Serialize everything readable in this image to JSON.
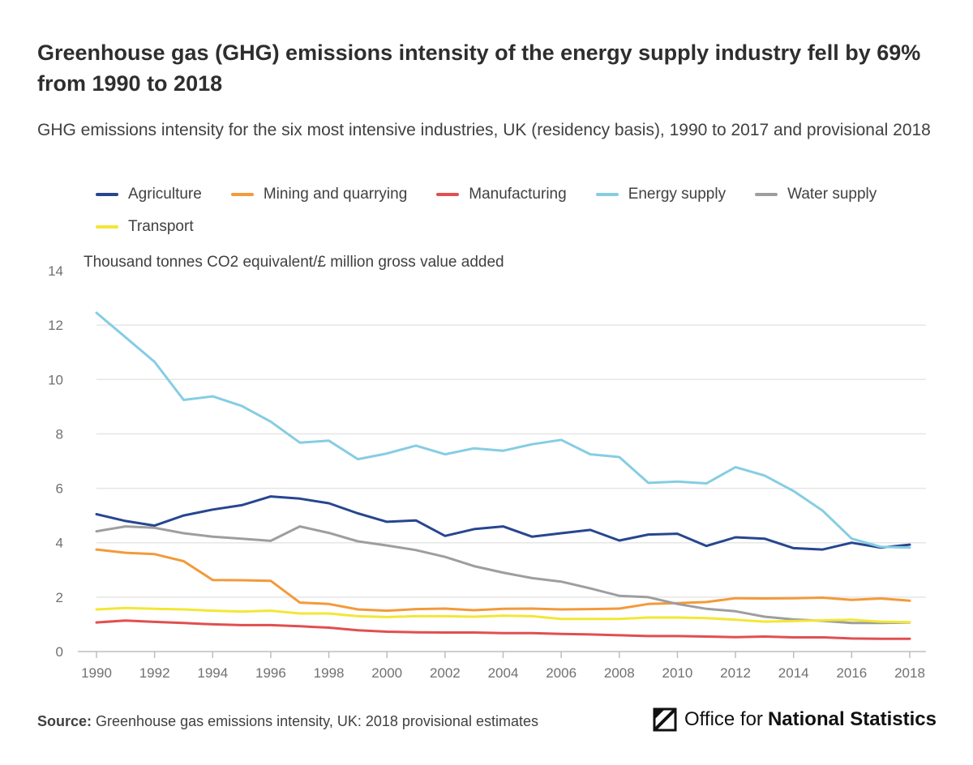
{
  "header": {
    "title": "Greenhouse gas (GHG) emissions intensity of the energy supply industry fell by 69% from 1990 to 2018",
    "subtitle": "GHG emissions intensity for the six most intensive industries, UK (residency basis), 1990 to 2017 and provisional 2018"
  },
  "footer": {
    "source_label": "Source:",
    "source_text": " Greenhouse gas emissions intensity, UK: 2018 provisional estimates",
    "logo_text_regular": "Office for",
    "logo_text_bold": "National Statistics"
  },
  "chart_data": {
    "type": "line",
    "ylabel": "Thousand tonnes CO2 equivalent/£ million gross value added",
    "ylim": [
      0,
      14
    ],
    "yticks": [
      0,
      2,
      4,
      6,
      8,
      10,
      12,
      14
    ],
    "xlim": [
      1990,
      2018
    ],
    "xticks": [
      1990,
      1992,
      1994,
      1996,
      1998,
      2000,
      2002,
      2004,
      2006,
      2008,
      2010,
      2012,
      2014,
      2016,
      2018
    ],
    "grid": true,
    "legend_position": "top",
    "x": [
      1990,
      1991,
      1992,
      1993,
      1994,
      1995,
      1996,
      1997,
      1998,
      1999,
      2000,
      2001,
      2002,
      2003,
      2004,
      2005,
      2006,
      2007,
      2008,
      2009,
      2010,
      2011,
      2012,
      2013,
      2014,
      2015,
      2016,
      2017,
      2018
    ],
    "series": [
      {
        "name": "Agriculture",
        "color": "#27468f",
        "values": [
          5.05,
          4.8,
          4.63,
          5.0,
          5.22,
          5.38,
          5.7,
          5.62,
          5.45,
          5.08,
          4.77,
          4.82,
          4.25,
          4.5,
          4.6,
          4.22,
          4.35,
          4.47,
          4.08,
          4.3,
          4.33,
          3.88,
          4.2,
          4.15,
          3.8,
          3.75,
          4.0,
          3.82,
          3.93
        ]
      },
      {
        "name": "Mining and quarrying",
        "color": "#f39a3a",
        "values": [
          3.75,
          3.63,
          3.58,
          3.32,
          2.63,
          2.62,
          2.6,
          1.8,
          1.75,
          1.55,
          1.5,
          1.56,
          1.58,
          1.52,
          1.57,
          1.58,
          1.55,
          1.56,
          1.58,
          1.75,
          1.78,
          1.82,
          1.96,
          1.95,
          1.96,
          1.98,
          1.9,
          1.95,
          1.87
        ]
      },
      {
        "name": "Manufacturing",
        "color": "#e14f50",
        "values": [
          1.07,
          1.14,
          1.09,
          1.05,
          1.0,
          0.97,
          0.97,
          0.93,
          0.88,
          0.78,
          0.73,
          0.71,
          0.7,
          0.7,
          0.68,
          0.68,
          0.65,
          0.63,
          0.6,
          0.57,
          0.57,
          0.55,
          0.53,
          0.55,
          0.52,
          0.52,
          0.48,
          0.47,
          0.47
        ]
      },
      {
        "name": "Energy supply",
        "color": "#86cde3",
        "values": [
          12.45,
          11.55,
          10.65,
          9.25,
          9.38,
          9.03,
          8.45,
          7.68,
          7.75,
          7.07,
          7.28,
          7.57,
          7.25,
          7.47,
          7.38,
          7.62,
          7.78,
          7.25,
          7.15,
          6.2,
          6.25,
          6.18,
          6.78,
          6.47,
          5.9,
          5.18,
          4.15,
          3.85,
          3.82
        ]
      },
      {
        "name": "Water supply",
        "color": "#9e9e9e",
        "values": [
          4.42,
          4.6,
          4.55,
          4.35,
          4.22,
          4.15,
          4.07,
          4.6,
          4.36,
          4.05,
          3.9,
          3.73,
          3.48,
          3.14,
          2.9,
          2.7,
          2.57,
          2.32,
          2.05,
          2.0,
          1.75,
          1.57,
          1.48,
          1.28,
          1.18,
          1.13,
          1.05,
          1.05,
          1.07
        ]
      },
      {
        "name": "Transport",
        "color": "#f2e735",
        "values": [
          1.55,
          1.6,
          1.57,
          1.55,
          1.5,
          1.47,
          1.5,
          1.4,
          1.4,
          1.3,
          1.27,
          1.3,
          1.3,
          1.28,
          1.32,
          1.3,
          1.2,
          1.2,
          1.2,
          1.25,
          1.25,
          1.23,
          1.17,
          1.1,
          1.12,
          1.15,
          1.17,
          1.1,
          1.08
        ]
      }
    ]
  }
}
